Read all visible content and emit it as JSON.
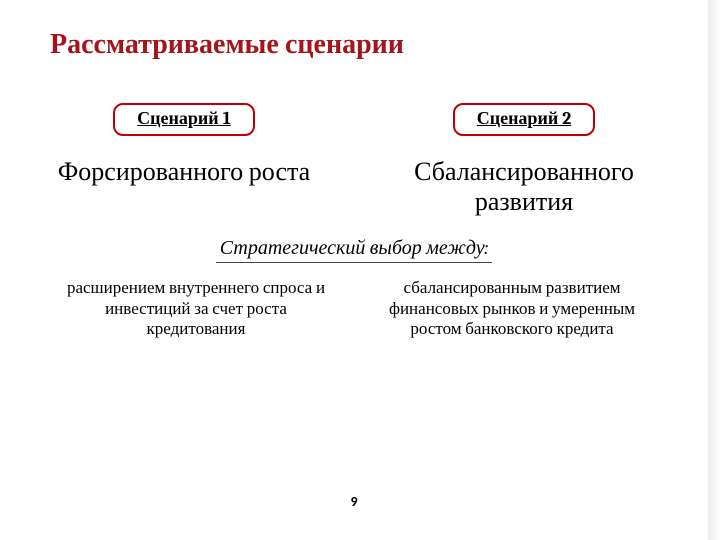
{
  "title": "Рассматриваемые сценарии",
  "title_color": "#a3141b",
  "title_fontsize": 28,
  "badge_border_color": "#c00000",
  "badge_text_color": "#000000",
  "badge_fontsize": 18,
  "headline_fontsize": 26,
  "scenarios": [
    {
      "badge": "Сценарий 1",
      "headline": "Форсированного роста",
      "desc": "расширением внутреннего спроса и инвестиций за счет роста кредитования"
    },
    {
      "badge": "Сценарий 2",
      "headline": "Сбалансированного развития",
      "desc": "сбалансированным развитием финансовых рынков и умеренным ростом банковского кредита"
    }
  ],
  "strategic_label": "Стратегический выбор между:",
  "strategic_fontsize": 20,
  "desc_fontsize": 17,
  "page_number": "9",
  "page_number_fontsize": 14,
  "background_color": "#ffffff",
  "accent_bar_color": "#ececec",
  "text_color": "#000000"
}
